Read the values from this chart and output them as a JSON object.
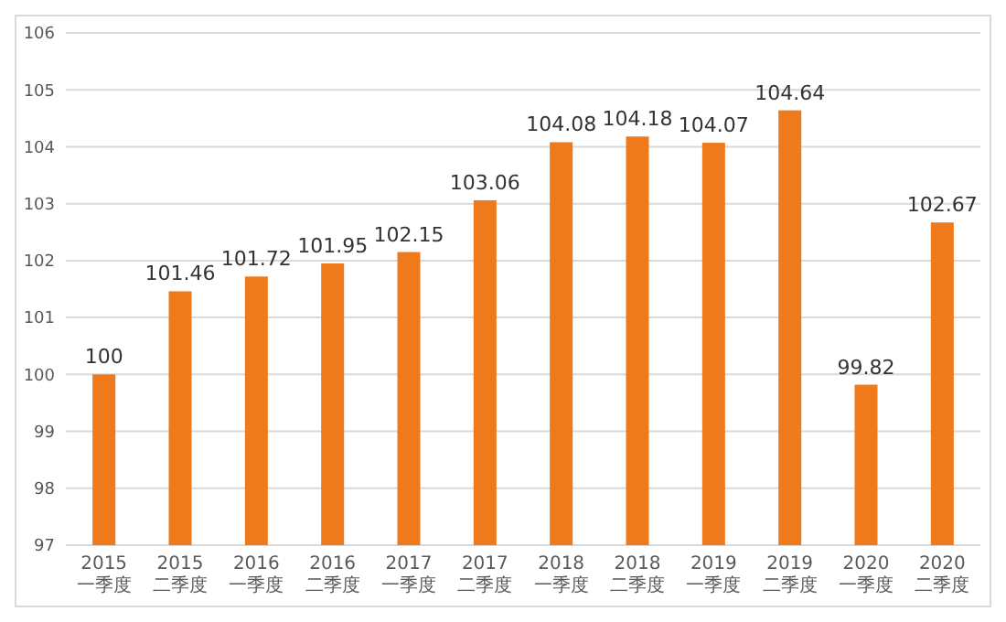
{
  "chart_data": {
    "type": "bar",
    "categories": [
      "2015一季度",
      "2015二季度",
      "2016一季度",
      "2016二季度",
      "2017一季度",
      "2017二季度",
      "2018一季度",
      "2018二季度",
      "2019一季度",
      "2019二季度",
      "2020一季度",
      "2020二季度"
    ],
    "values": [
      100,
      101.46,
      101.72,
      101.95,
      102.15,
      103.06,
      104.08,
      104.18,
      104.07,
      104.64,
      99.82,
      102.67
    ],
    "color": "#ee7a1c",
    "ylim": [
      97,
      106
    ],
    "yticks": [
      97,
      98,
      99,
      100,
      101,
      102,
      103,
      104,
      105,
      106
    ],
    "grid": "y",
    "data_labels": true
  }
}
